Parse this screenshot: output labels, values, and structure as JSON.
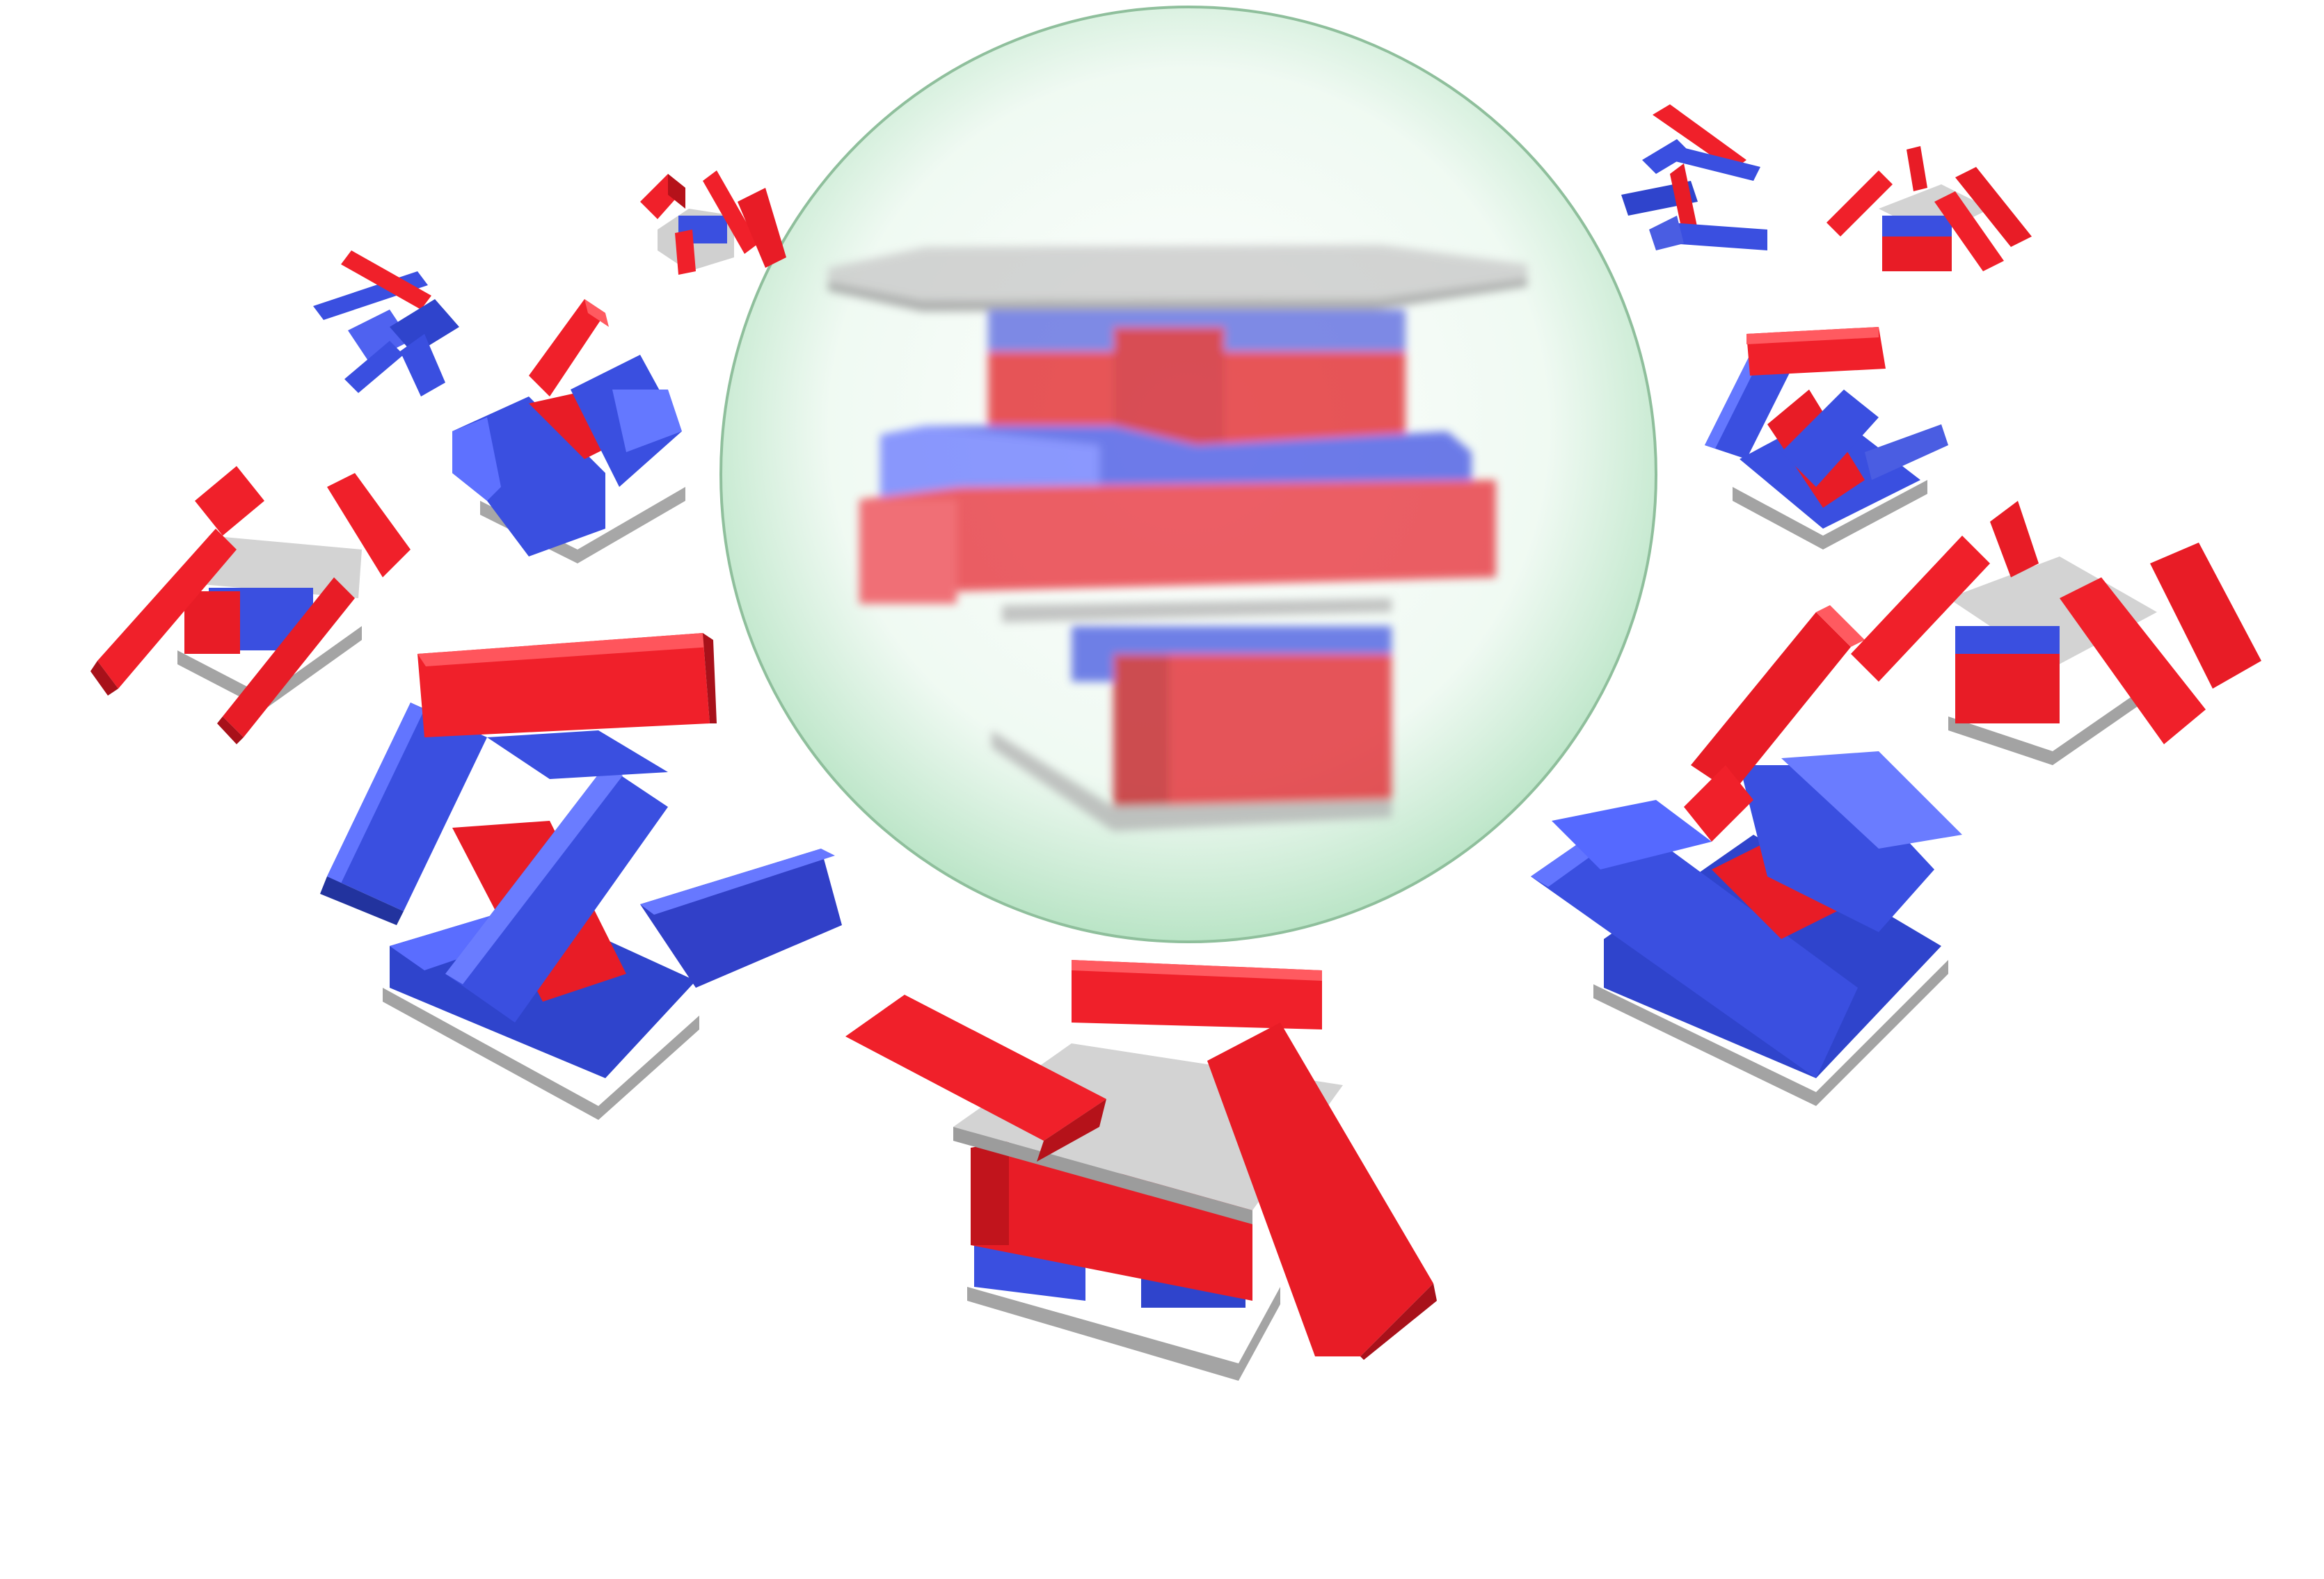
{
  "scene": {
    "description_text": "",
    "colors": {
      "red": "#f0202a",
      "red_dark": "#b5121a",
      "red_light": "#ff4a52",
      "blue": "#3a4fe0",
      "blue_dark": "#2432a8",
      "blue_light": "#6a7cff",
      "plate": "#d7d7d7",
      "plate_dark": "#9a9a9a",
      "bubble_center": "#ffffff",
      "bubble_edge": "#a8ddb7"
    },
    "elements": {
      "bubble": "transparent-green-sphere",
      "core": "blurred-stacked-block-assembly",
      "clusters": [
        "block-cluster-top-left-small",
        "block-cluster-top-left-tiny",
        "block-cluster-upper-left",
        "block-cluster-left",
        "block-cluster-lower-left-large",
        "block-cluster-bottom-center",
        "block-cluster-lower-right-large",
        "block-cluster-right",
        "block-cluster-upper-right",
        "block-cluster-top-right-small",
        "block-cluster-top-right-tiny"
      ]
    }
  }
}
